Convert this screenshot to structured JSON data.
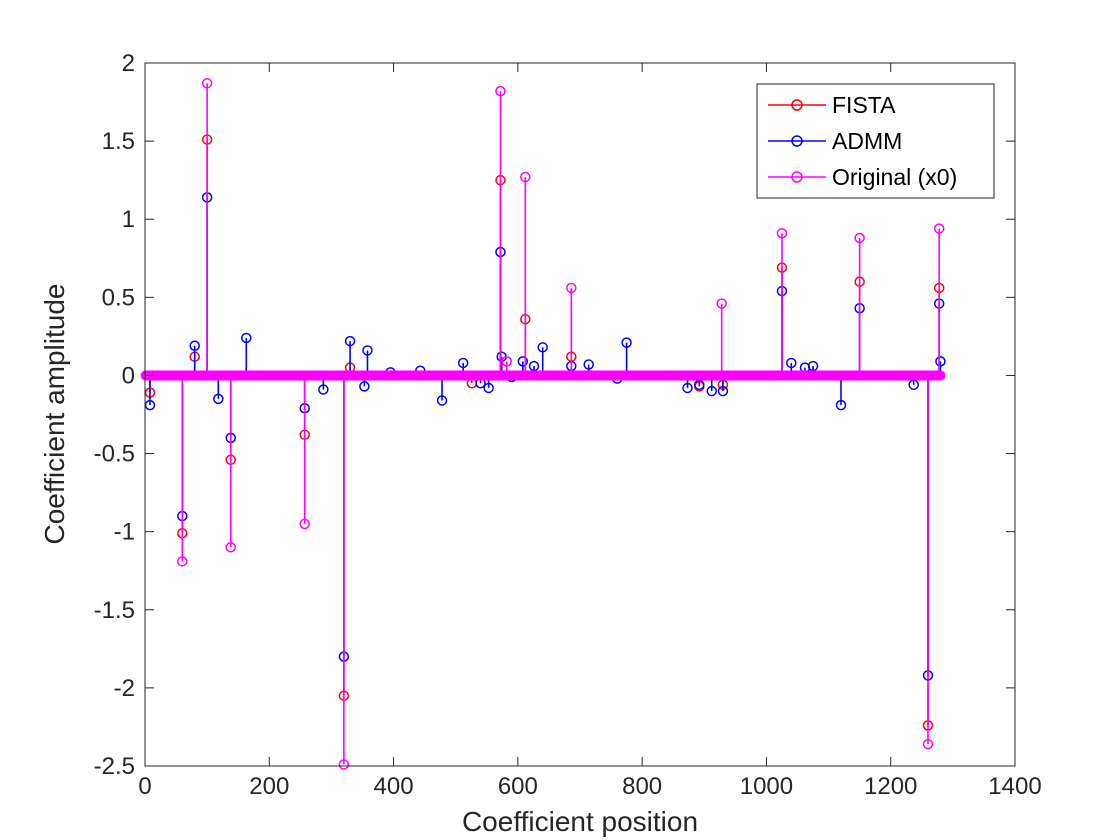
{
  "chart_data": {
    "type": "stem",
    "title": "",
    "xlabel": "Coefficient position",
    "ylabel": "Coefficient amplitude",
    "xlim": [
      0,
      1400
    ],
    "ylim": [
      -2.5,
      2
    ],
    "xticks": [
      0,
      200,
      400,
      600,
      800,
      1000,
      1200,
      1400
    ],
    "yticks": [
      -2.5,
      -2,
      -1.5,
      -1,
      -0.5,
      0,
      0.5,
      1,
      1.5,
      2
    ],
    "baseline_range": [
      1,
      1280
    ],
    "legend_position": "top-right",
    "grid": false,
    "series": [
      {
        "name": "FISTA",
        "color": "#ff0000",
        "points": [
          [
            8,
            -0.11
          ],
          [
            60,
            -1.01
          ],
          [
            80,
            0.12
          ],
          [
            100,
            1.51
          ],
          [
            138,
            -0.54
          ],
          [
            257,
            -0.38
          ],
          [
            320,
            -2.05
          ],
          [
            330,
            0.05
          ],
          [
            526,
            -0.05
          ],
          [
            572,
            1.25
          ],
          [
            612,
            0.36
          ],
          [
            686,
            0.12
          ],
          [
            892,
            -0.07
          ],
          [
            930,
            -0.06
          ],
          [
            1025,
            0.69
          ],
          [
            1150,
            0.6
          ],
          [
            1260,
            -2.24
          ],
          [
            1278,
            0.56
          ]
        ]
      },
      {
        "name": "ADMM",
        "color": "#0000ff",
        "points": [
          [
            8,
            -0.19
          ],
          [
            60,
            -0.9
          ],
          [
            80,
            0.19
          ],
          [
            100,
            1.14
          ],
          [
            118,
            -0.15
          ],
          [
            138,
            -0.4
          ],
          [
            163,
            0.24
          ],
          [
            257,
            -0.21
          ],
          [
            287,
            -0.09
          ],
          [
            320,
            -1.8
          ],
          [
            330,
            0.22
          ],
          [
            353,
            -0.07
          ],
          [
            358,
            0.16
          ],
          [
            395,
            0.02
          ],
          [
            443,
            0.03
          ],
          [
            478,
            -0.16
          ],
          [
            512,
            0.08
          ],
          [
            540,
            -0.05
          ],
          [
            553,
            -0.08
          ],
          [
            572,
            0.79
          ],
          [
            574,
            0.12
          ],
          [
            590,
            -0.01
          ],
          [
            608,
            0.09
          ],
          [
            626,
            0.06
          ],
          [
            640,
            0.18
          ],
          [
            686,
            0.06
          ],
          [
            714,
            0.07
          ],
          [
            760,
            -0.02
          ],
          [
            775,
            0.21
          ],
          [
            873,
            -0.08
          ],
          [
            892,
            -0.06
          ],
          [
            912,
            -0.1
          ],
          [
            930,
            -0.1
          ],
          [
            1025,
            0.54
          ],
          [
            1040,
            0.08
          ],
          [
            1062,
            0.05
          ],
          [
            1075,
            0.06
          ],
          [
            1120,
            -0.19
          ],
          [
            1150,
            0.43
          ],
          [
            1237,
            -0.06
          ],
          [
            1260,
            -1.92
          ],
          [
            1278,
            0.46
          ],
          [
            1280,
            0.09
          ]
        ]
      },
      {
        "name": "Original (x0)",
        "color": "#ff00ff",
        "points": [
          [
            60,
            -1.19
          ],
          [
            100,
            1.87
          ],
          [
            138,
            -1.1
          ],
          [
            257,
            -0.95
          ],
          [
            320,
            -2.49
          ],
          [
            572,
            1.82
          ],
          [
            582,
            0.09
          ],
          [
            612,
            1.27
          ],
          [
            686,
            0.56
          ],
          [
            928,
            0.46
          ],
          [
            1025,
            0.91
          ],
          [
            1150,
            0.88
          ],
          [
            1260,
            -2.36
          ],
          [
            1278,
            0.94
          ]
        ]
      }
    ]
  }
}
